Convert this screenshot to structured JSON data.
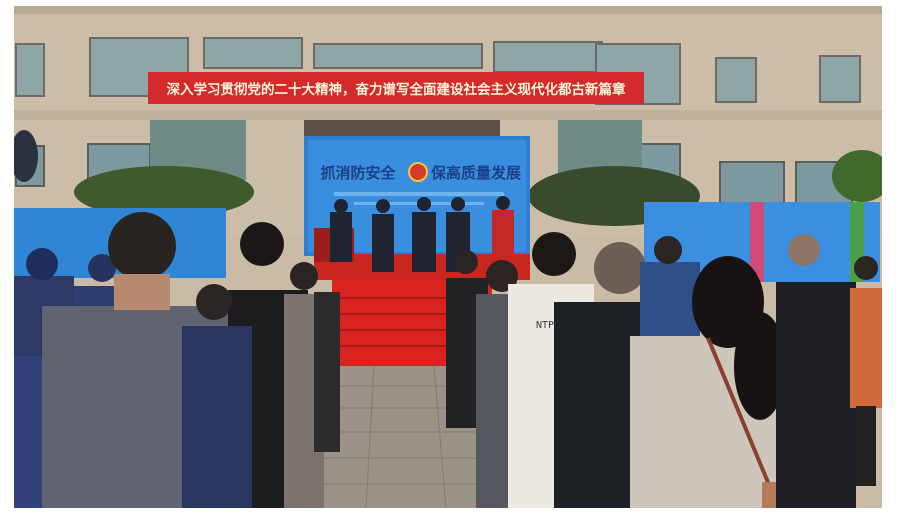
{
  "scene": {
    "red_banner_text": "深入学习贯彻党的二十大精神，奋力谱写全面建设社会主义现代化都古新篇章",
    "backdrop_left_text": "抓消防安全",
    "backdrop_right_text": "保高质量发展",
    "shirt_text": "NTPH"
  },
  "colors": {
    "building": "#cbbda8",
    "red_banner": "#d42a2c",
    "backdrop": "#2f7fd0",
    "carpet": "#d8231f",
    "pavement": "#9c9388"
  }
}
